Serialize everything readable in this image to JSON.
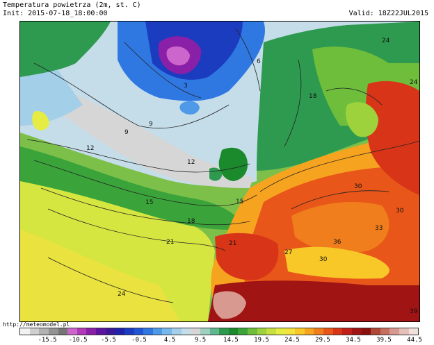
{
  "header": {
    "title": "Temperatura powietrza (2m, st. C)",
    "init": "Init: 2015-07-18_18:00:00",
    "valid": "Valid: 18Z22JUL2015"
  },
  "source_url": "http://meteomodel.pl",
  "colorbar": {
    "colors": [
      "#f2f2f2",
      "#cfcfcf",
      "#b1b1b1",
      "#939393",
      "#767676",
      "#cc66cc",
      "#b03ab8",
      "#8a1fa8",
      "#5f14a0",
      "#3a1896",
      "#1f22a8",
      "#1c3cc0",
      "#2056d4",
      "#2f78e2",
      "#4f9ae8",
      "#76b7ec",
      "#a3cfe8",
      "#c5dde8",
      "#d6d6d6",
      "#9dd0c0",
      "#5fb890",
      "#2e9a50",
      "#1a8a2c",
      "#3aa43a",
      "#6ebe3c",
      "#9ed23c",
      "#c6e040",
      "#e6ec44",
      "#f6e23c",
      "#f8c828",
      "#f6a420",
      "#f07e1c",
      "#e8561a",
      "#d83418",
      "#c01e18",
      "#a01414",
      "#8a1010",
      "#b04838",
      "#c86e60",
      "#d89a90",
      "#e6c0b8",
      "#f2e0dc"
    ],
    "ticks": [
      "-15.5",
      "-10.5",
      "-5.5",
      "-0.5",
      "4.5",
      "9.5",
      "14.5",
      "19.5",
      "24.5",
      "29.5",
      "34.5",
      "39.5",
      "44.5"
    ]
  },
  "contour_labels": [
    "3",
    "6",
    "9",
    "9",
    "12",
    "12",
    "15",
    "15",
    "18",
    "18",
    "21",
    "21",
    "24",
    "24",
    "24",
    "27",
    "30",
    "30",
    "30",
    "33",
    "36",
    "39"
  ]
}
